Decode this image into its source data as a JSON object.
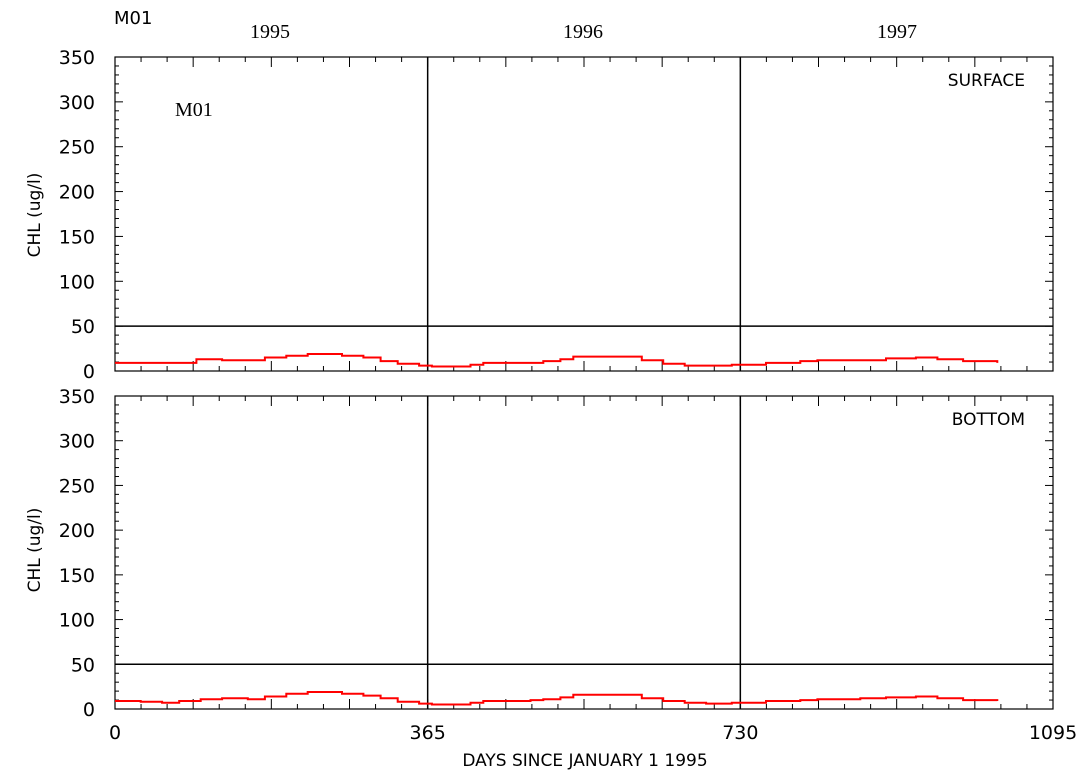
{
  "header": {
    "station_tag": "M01",
    "station_annotation": "M01",
    "years": [
      "1995",
      "1996",
      "1997"
    ]
  },
  "colors": {
    "series": "#ff0000",
    "axes": "#000000",
    "background": "#ffffff"
  },
  "chart_data": [
    {
      "type": "line",
      "panel_label": "SURFACE",
      "ylabel": "CHL (ug/l)",
      "xlabel": "",
      "xlim": [
        0,
        1095
      ],
      "ylim": [
        0,
        350
      ],
      "yticks": [
        "0",
        "50",
        "100",
        "150",
        "200",
        "250",
        "300",
        "350"
      ],
      "xticks": [],
      "vertical_lines_x": [
        365,
        730
      ],
      "horizontal_line_y": 50,
      "series": [
        {
          "x": [
            0,
            55,
            95,
            125,
            155,
            175,
            200,
            225,
            265,
            290,
            310,
            330,
            355,
            370,
            395,
            415,
            430,
            485,
            500,
            520,
            535,
            595,
            615,
            640,
            665,
            690,
            720,
            760,
            800,
            820,
            845,
            870,
            900,
            935,
            960,
            990,
            1030
          ],
          "y": [
            9,
            9,
            13,
            12,
            12,
            15,
            17,
            19,
            17,
            15,
            11,
            8,
            6,
            5,
            5,
            7,
            9,
            9,
            11,
            13,
            16,
            16,
            12,
            8,
            6,
            6,
            7,
            9,
            11,
            12,
            12,
            12,
            14,
            15,
            13,
            11,
            9
          ]
        }
      ]
    },
    {
      "type": "line",
      "panel_label": "BOTTOM",
      "ylabel": "CHL (ug/l)",
      "xlabel": "DAYS SINCE JANUARY 1 1995",
      "xlim": [
        0,
        1095
      ],
      "ylim": [
        0,
        350
      ],
      "yticks": [
        "0",
        "50",
        "100",
        "150",
        "200",
        "250",
        "300",
        "350"
      ],
      "xticks": [
        "0",
        "365",
        "730",
        "1095"
      ],
      "vertical_lines_x": [
        365,
        730
      ],
      "horizontal_line_y": 50,
      "series": [
        {
          "x": [
            0,
            30,
            55,
            75,
            100,
            125,
            155,
            175,
            200,
            225,
            265,
            290,
            310,
            330,
            355,
            370,
            395,
            415,
            430,
            485,
            500,
            520,
            535,
            595,
            615,
            640,
            665,
            690,
            720,
            760,
            800,
            820,
            845,
            870,
            900,
            935,
            960,
            990,
            1030
          ],
          "y": [
            9,
            8,
            7,
            9,
            11,
            12,
            11,
            14,
            17,
            19,
            17,
            15,
            12,
            8,
            6,
            5,
            5,
            7,
            9,
            10,
            11,
            13,
            16,
            16,
            12,
            9,
            7,
            6,
            7,
            9,
            10,
            11,
            11,
            12,
            13,
            14,
            12,
            10,
            9
          ]
        }
      ]
    }
  ]
}
